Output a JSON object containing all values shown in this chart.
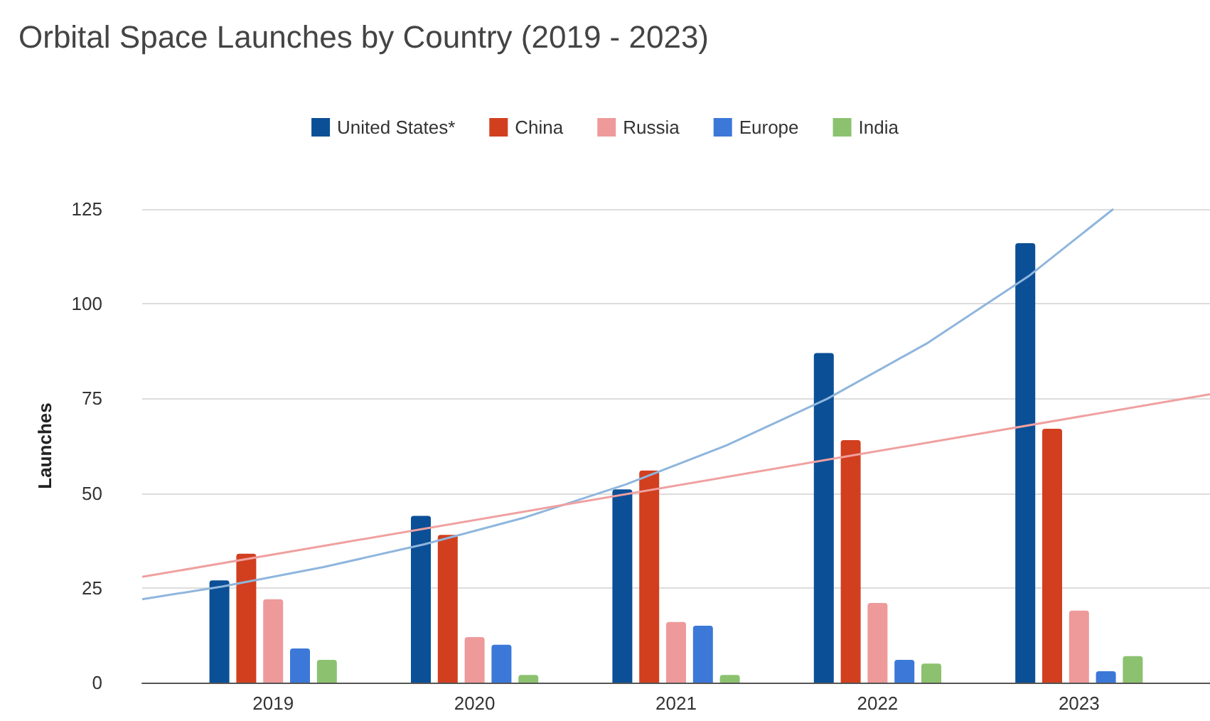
{
  "chart_data": {
    "type": "bar",
    "title": "Orbital Space Launches by Country (2019 - 2023)",
    "ylabel": "Launches",
    "x": [
      2019,
      2020,
      2021,
      2022,
      2023
    ],
    "xlim": [
      2018.35,
      2023.65
    ],
    "xticks": [
      2019,
      2020,
      2021,
      2022,
      2023
    ],
    "ylim": [
      0,
      125
    ],
    "yticks": [
      0,
      25,
      50,
      75,
      100,
      125
    ],
    "grid": "y",
    "legend": "top",
    "series": [
      {
        "name": "United States*",
        "color": "#0b4f96",
        "values": [
          27,
          44,
          51,
          87,
          116
        ]
      },
      {
        "name": "China",
        "color": "#d13f1f",
        "values": [
          34,
          39,
          56,
          64,
          67
        ]
      },
      {
        "name": "Russia",
        "color": "#ee9a9a",
        "values": [
          22,
          12,
          16,
          21,
          19
        ]
      },
      {
        "name": "Europe",
        "color": "#3b78d8",
        "values": [
          9,
          10,
          15,
          6,
          3
        ]
      },
      {
        "name": "India",
        "color": "#8cc26f",
        "values": [
          6,
          2,
          2,
          5,
          7
        ]
      },
      {
        "type": "line",
        "color": "#8fb6dd",
        "marker": "none",
        "x": [
          2018.35,
          2018.75,
          2019.25,
          2019.75,
          2020.25,
          2020.75,
          2021.25,
          2021.75,
          2022.25,
          2022.75,
          2023.17
        ],
        "values": [
          22.0,
          25.4,
          30.5,
          36.5,
          43.6,
          52.3,
          62.6,
          74.9,
          89.7,
          107.3,
          125
        ]
      },
      {
        "type": "line",
        "color": "#f0a0a0",
        "marker": "none",
        "x": [
          2018.35,
          2023.65
        ],
        "values": [
          27.9,
          76.1
        ]
      }
    ]
  }
}
